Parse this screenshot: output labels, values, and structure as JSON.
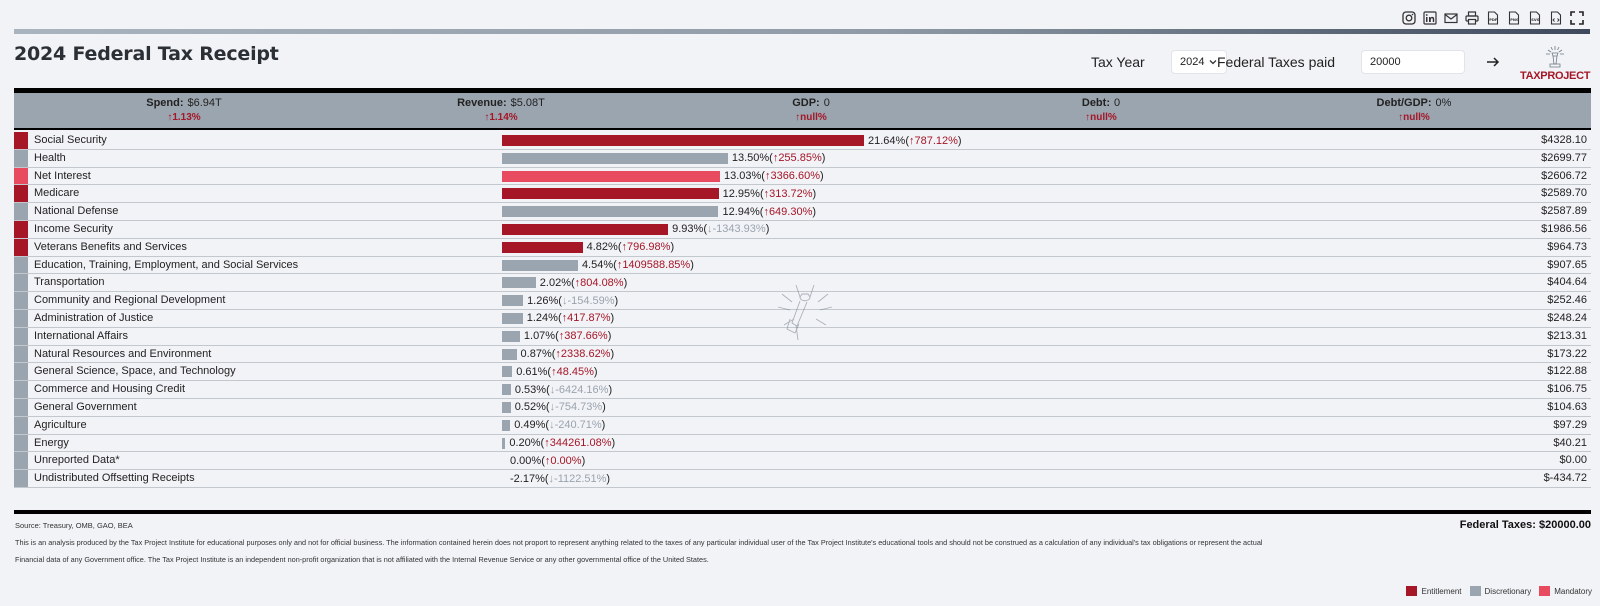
{
  "toolbar": {
    "icons": [
      "instagram-icon",
      "linkedin-icon",
      "mail-icon",
      "print-icon",
      "pdf-icon",
      "png-icon",
      "svg-icon",
      "code-icon",
      "fullscreen-icon"
    ]
  },
  "title": "2024 Federal Tax Receipt",
  "controls": {
    "tax_year_label": "Tax Year",
    "tax_year_value": "2024",
    "taxes_paid_label": "Federal Taxes paid",
    "taxes_paid_value": "20000",
    "submit_icon": "arrow-right-icon"
  },
  "logo": {
    "text": "TAXPROJECT"
  },
  "summary": [
    {
      "label": "Spend:",
      "value": "$6.94T",
      "change": "↑1.13%"
    },
    {
      "label": "Revenue:",
      "value": "$5.08T",
      "change": "↑1.14%"
    },
    {
      "label": "GDP:",
      "value": "0",
      "change": "↑null%"
    },
    {
      "label": "Debt:",
      "value": "0",
      "change": "↑null%"
    },
    {
      "label": "Debt/GDP:",
      "value": "0%",
      "change": "↑null%"
    }
  ],
  "colors": {
    "entitlement": "#a51627",
    "discretionary": "#9ba5af",
    "mandatory": "#e84a5f"
  },
  "rows": [
    {
      "name": "Social Security",
      "type": "entitlement",
      "share": 21.64,
      "pct": "21.64%",
      "change": "787.12%",
      "dir": "up",
      "amount": "$4328.10"
    },
    {
      "name": "Health",
      "type": "discretionary",
      "share": 13.5,
      "pct": "13.50%",
      "change": "255.85%",
      "dir": "up",
      "amount": "$2699.77"
    },
    {
      "name": "Net Interest",
      "type": "mandatory",
      "share": 13.03,
      "pct": "13.03%",
      "change": "3366.60%",
      "dir": "up",
      "amount": "$2606.72"
    },
    {
      "name": "Medicare",
      "type": "entitlement",
      "share": 12.95,
      "pct": "12.95%",
      "change": "313.72%",
      "dir": "up",
      "amount": "$2589.70"
    },
    {
      "name": "National Defense",
      "type": "discretionary",
      "share": 12.94,
      "pct": "12.94%",
      "change": "649.30%",
      "dir": "up",
      "amount": "$2587.89"
    },
    {
      "name": "Income Security",
      "type": "entitlement",
      "share": 9.93,
      "pct": "9.93%",
      "change": "-1343.93%",
      "dir": "down",
      "amount": "$1986.56"
    },
    {
      "name": "Veterans Benefits and Services",
      "type": "entitlement",
      "share": 4.82,
      "pct": "4.82%",
      "change": "796.98%",
      "dir": "up",
      "amount": "$964.73"
    },
    {
      "name": "Education, Training, Employment, and Social Services",
      "type": "discretionary",
      "share": 4.54,
      "pct": "4.54%",
      "change": "1409588.85%",
      "dir": "up",
      "amount": "$907.65"
    },
    {
      "name": "Transportation",
      "type": "discretionary",
      "share": 2.02,
      "pct": "2.02%",
      "change": "804.08%",
      "dir": "up",
      "amount": "$404.64"
    },
    {
      "name": "Community and Regional Development",
      "type": "discretionary",
      "share": 1.26,
      "pct": "1.26%",
      "change": "-154.59%",
      "dir": "down",
      "amount": "$252.46"
    },
    {
      "name": "Administration of Justice",
      "type": "discretionary",
      "share": 1.24,
      "pct": "1.24%",
      "change": "417.87%",
      "dir": "up",
      "amount": "$248.24"
    },
    {
      "name": "International Affairs",
      "type": "discretionary",
      "share": 1.07,
      "pct": "1.07%",
      "change": "387.66%",
      "dir": "up",
      "amount": "$213.31"
    },
    {
      "name": "Natural Resources and Environment",
      "type": "discretionary",
      "share": 0.87,
      "pct": "0.87%",
      "change": "2338.62%",
      "dir": "up",
      "amount": "$173.22"
    },
    {
      "name": "General Science, Space, and Technology",
      "type": "discretionary",
      "share": 0.61,
      "pct": "0.61%",
      "change": "48.45%",
      "dir": "up",
      "amount": "$122.88"
    },
    {
      "name": "Commerce and Housing Credit",
      "type": "discretionary",
      "share": 0.53,
      "pct": "0.53%",
      "change": "-6424.16%",
      "dir": "down",
      "amount": "$106.75"
    },
    {
      "name": "General Government",
      "type": "discretionary",
      "share": 0.52,
      "pct": "0.52%",
      "change": "-754.73%",
      "dir": "down",
      "amount": "$104.63"
    },
    {
      "name": "Agriculture",
      "type": "discretionary",
      "share": 0.49,
      "pct": "0.49%",
      "change": "-240.71%",
      "dir": "down",
      "amount": "$97.29"
    },
    {
      "name": "Energy",
      "type": "discretionary",
      "share": 0.2,
      "pct": "0.20%",
      "change": "344261.08%",
      "dir": "up",
      "amount": "$40.21"
    },
    {
      "name": "Unreported Data*",
      "type": "discretionary",
      "share": 0.0,
      "pct": "0.00%",
      "change": "0.00%",
      "dir": "up",
      "amount": "$0.00"
    },
    {
      "name": "Undistributed Offsetting Receipts",
      "type": "discretionary",
      "share": -2.17,
      "pct": "-2.17%",
      "change": "-1122.51%",
      "dir": "down",
      "amount": "$-434.72"
    }
  ],
  "footer": {
    "source": "Source: Treasury, OMB, GAO, BEA",
    "total": "Federal Taxes: $20000.00",
    "disclaimer": "This is an analysis produced by the Tax Project Institute for educational purposes only and not for official business. The information contained herein does not proport to represent anything related to the taxes of any particular individual user of the Tax Project Institute's educational tools and should not be construed as a calculation of any individual's tax obligations or represent the actual Financial data of any Government office. The Tax Project Institute is an independent non-profit organization that is not affiliated with the Internal Revenue Service or any other governmental office of the United States."
  },
  "legend": [
    {
      "label": "Entitlement",
      "type": "entitlement"
    },
    {
      "label": "Discretionary",
      "type": "discretionary"
    },
    {
      "label": "Mandatory",
      "type": "mandatory"
    }
  ]
}
